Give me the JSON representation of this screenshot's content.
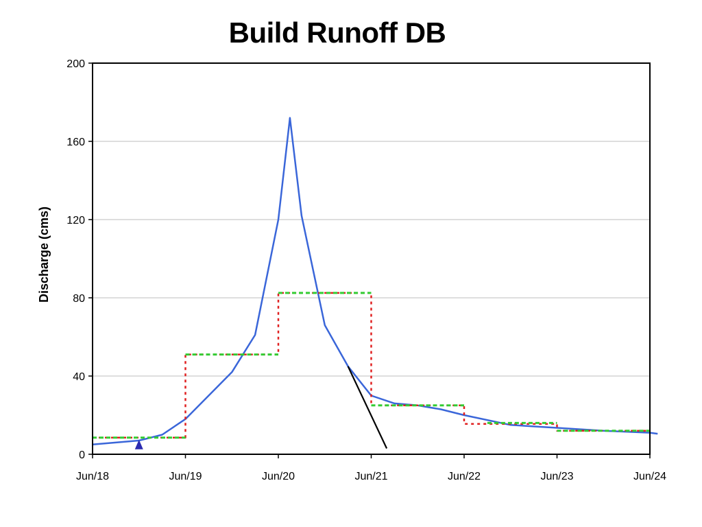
{
  "chart_data": {
    "type": "line",
    "title": "Build Runoff DB",
    "xlabel": "",
    "ylabel": "Discharge (cms)",
    "ylim": [
      0,
      200
    ],
    "xlim": [
      "Jun/18",
      "Jun/24"
    ],
    "yticks": [
      0,
      40,
      80,
      120,
      160,
      200
    ],
    "xtick_labels": [
      "Jun/18",
      "Jun/19",
      "Jun/20",
      "Jun/21",
      "Jun/22",
      "Jun/23",
      "Jun/24"
    ],
    "grid": "horizontal",
    "legend": "none",
    "series": [
      {
        "style": "solid",
        "color": "#3a66d9",
        "points": [
          [
            "Jun/18 00:00",
            5
          ],
          [
            "Jun/18 12:00",
            7
          ],
          [
            "Jun/18 18:00",
            10
          ],
          [
            "Jun/19 00:00",
            18
          ],
          [
            "Jun/19 12:00",
            42
          ],
          [
            "Jun/19 18:00",
            61
          ],
          [
            "Jun/20 00:00",
            120
          ],
          [
            "Jun/20 03:00",
            172
          ],
          [
            "Jun/20 06:00",
            122
          ],
          [
            "Jun/20 12:00",
            66
          ],
          [
            "Jun/20 18:00",
            45
          ],
          [
            "Jun/21 00:00",
            30
          ],
          [
            "Jun/21 06:00",
            26
          ],
          [
            "Jun/21 12:00",
            25
          ],
          [
            "Jun/21 18:00",
            23
          ],
          [
            "Jun/22 00:00",
            20
          ],
          [
            "Jun/22 12:00",
            15
          ],
          [
            "Jun/23 00:00",
            13.5
          ],
          [
            "Jun/23 12:00",
            12
          ],
          [
            "Jun/24 00:00",
            11
          ],
          [
            "Jun/24 02:00",
            10.5
          ]
        ]
      },
      {
        "style": "dotted-step",
        "color": "#e02020",
        "points": [
          [
            "Jun/18 00:00",
            8.5
          ],
          [
            "Jun/19 00:00",
            8.5
          ],
          [
            "Jun/19 00:00",
            51
          ],
          [
            "Jun/20 00:00",
            51
          ],
          [
            "Jun/20 00:00",
            82.5
          ],
          [
            "Jun/21 00:00",
            82.5
          ],
          [
            "Jun/21 00:00",
            25
          ],
          [
            "Jun/22 00:00",
            25
          ],
          [
            "Jun/22 00:00",
            15.5
          ],
          [
            "Jun/23 00:00",
            15.5
          ],
          [
            "Jun/23 00:00",
            12
          ],
          [
            "Jun/24 00:00",
            12
          ]
        ]
      },
      {
        "style": "dashed-step",
        "color": "#33cc33",
        "segments": [
          [
            [
              "Jun/18 00:00",
              8.5
            ],
            [
              "Jun/19 00:00",
              8.5
            ]
          ],
          [
            [
              "Jun/19 00:00",
              51
            ],
            [
              "Jun/20 00:00",
              51
            ]
          ],
          [
            [
              "Jun/20 00:00",
              82.5
            ],
            [
              "Jun/21 00:00",
              82.5
            ]
          ],
          [
            [
              "Jun/21 00:00",
              25
            ],
            [
              "Jun/22 00:00",
              25
            ]
          ],
          [
            [
              "Jun/22 06:00",
              16
            ],
            [
              "Jun/23 00:00",
              16
            ]
          ],
          [
            [
              "Jun/23 00:00",
              12
            ],
            [
              "Jun/24 00:00",
              12
            ]
          ]
        ]
      },
      {
        "style": "solid",
        "color": "#000000",
        "points": [
          [
            "Jun/20 18:00",
            45
          ],
          [
            "Jun/21 04:00",
            3
          ]
        ]
      }
    ],
    "markers": [
      {
        "shape": "triangle",
        "color": "#2b2bb0",
        "point": [
          "Jun/18 12:00",
          5
        ]
      }
    ]
  }
}
